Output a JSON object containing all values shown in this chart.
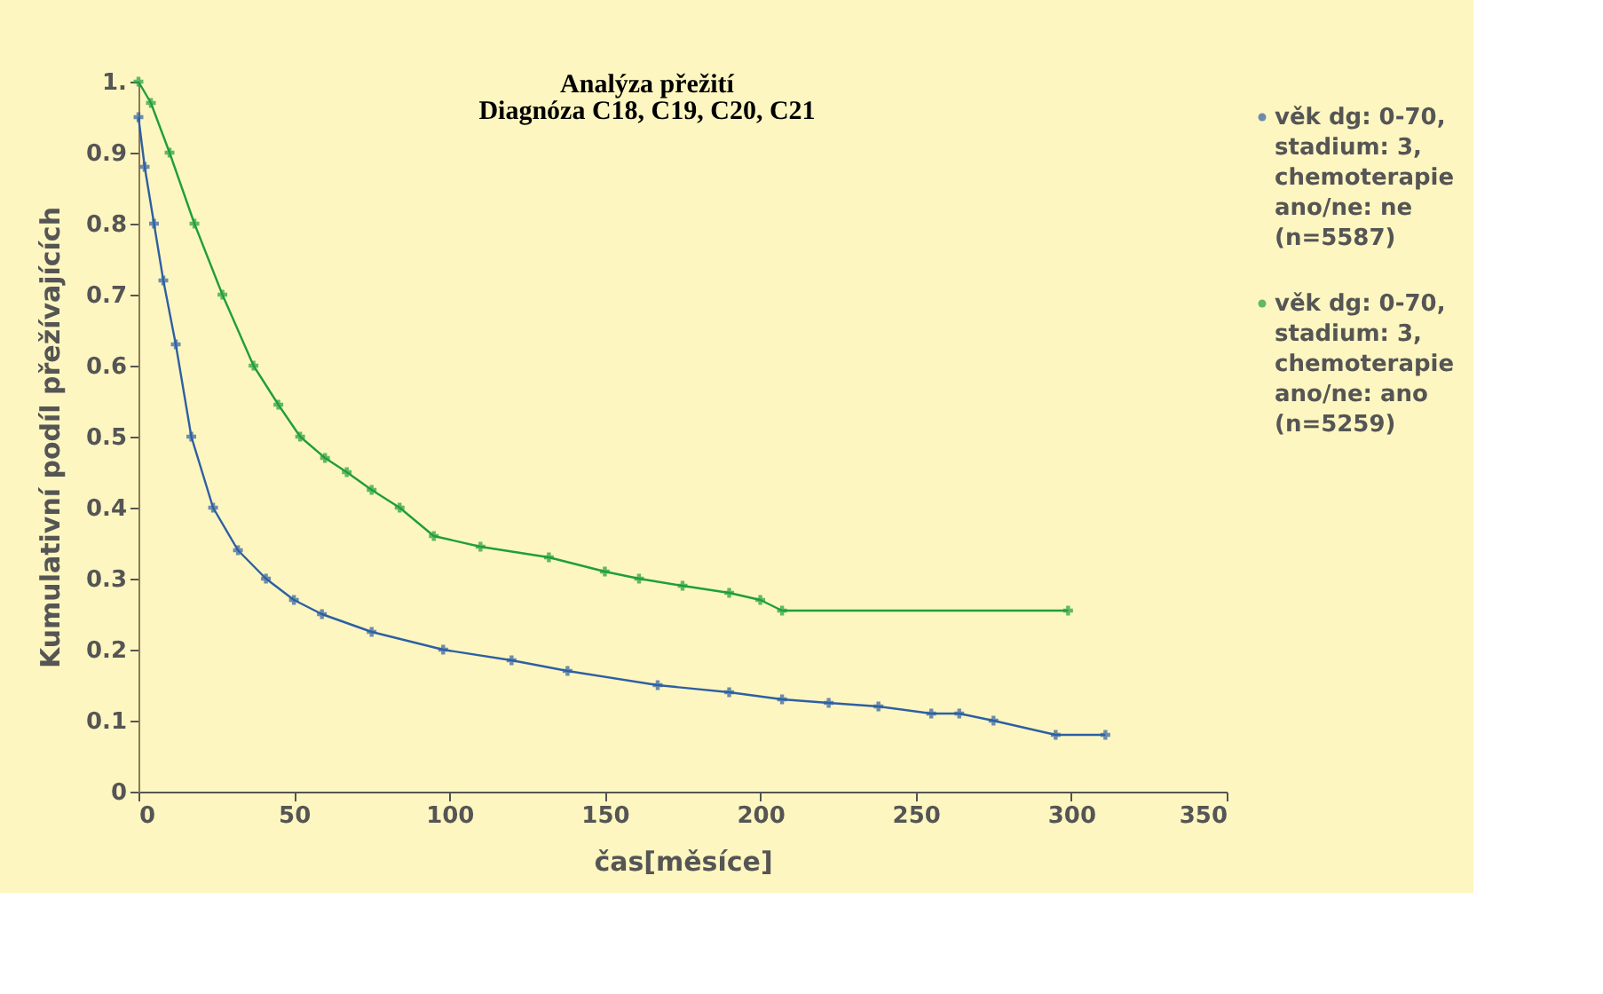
{
  "chart_data": {
    "type": "line",
    "title": "Analýza přežití",
    "subtitle": "Diagnóza C18, C19, C20, C21",
    "xlabel": "čas[měsíce]",
    "ylabel": "Kumulativní podíl přežívajících",
    "xlim": [
      0,
      350
    ],
    "xticks": [
      0,
      50,
      100,
      150,
      200,
      250,
      300,
      350
    ],
    "ylim": [
      0,
      1
    ],
    "yticks": [
      0,
      0.1,
      0.2,
      0.3,
      0.4,
      0.5,
      0.6,
      0.7,
      0.8,
      0.9,
      {
        "value": 1,
        "label": "1."
      }
    ],
    "grid": false,
    "legend": "right",
    "marker": "cross",
    "line_style": "solid",
    "series": [
      {
        "name": "věk dg: 0-70, stadium: 3, chemoterapie ano/ne: ne (n=5587)",
        "color": "#2e5fa3",
        "x": [
          0,
          2,
          5,
          8,
          12,
          17,
          24,
          32,
          41,
          50,
          59,
          75,
          98,
          120,
          138,
          167,
          190,
          207,
          222,
          238,
          255,
          264,
          275,
          295,
          311
        ],
        "values": [
          0.95,
          0.88,
          0.8,
          0.72,
          0.63,
          0.5,
          0.4,
          0.34,
          0.3,
          0.27,
          0.25,
          0.225,
          0.2,
          0.185,
          0.17,
          0.15,
          0.14,
          0.13,
          0.125,
          0.12,
          0.11,
          0.11,
          0.1,
          0.08,
          0.08
        ]
      },
      {
        "name": "věk dg: 0-70, stadium: 3, chemoterapie ano/ne: ano (n=5259)",
        "color": "#1f9e3c",
        "x": [
          0,
          4,
          10,
          18,
          27,
          37,
          45,
          52,
          60,
          67,
          75,
          84,
          95,
          110,
          132,
          150,
          161,
          175,
          190,
          200,
          207,
          299
        ],
        "values": [
          1.0,
          0.97,
          0.9,
          0.8,
          0.7,
          0.6,
          0.545,
          0.5,
          0.47,
          0.45,
          0.425,
          0.4,
          0.36,
          0.345,
          0.33,
          0.31,
          0.3,
          0.29,
          0.28,
          0.27,
          0.255,
          0.255
        ]
      }
    ]
  }
}
